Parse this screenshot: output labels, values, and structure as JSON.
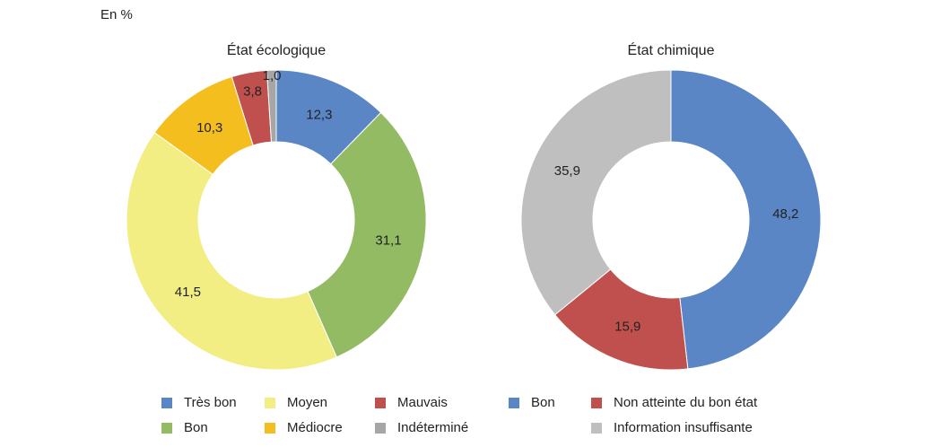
{
  "unit_label": "En %",
  "chart_data": [
    {
      "type": "pie",
      "donut": true,
      "title": "État écologique",
      "categories": [
        "Très bon",
        "Bon",
        "Moyen",
        "Médiocre",
        "Mauvais",
        "Indéterminé"
      ],
      "values": [
        12.3,
        31.1,
        41.5,
        10.3,
        3.8,
        1.0
      ],
      "value_labels": [
        "12,3",
        "31,1",
        "41,5",
        "10,3",
        "3,8",
        "1,0"
      ],
      "colors": [
        "#5a86c5",
        "#93bb64",
        "#f2ee84",
        "#f5be1f",
        "#c0504d",
        "#a6a6a6"
      ],
      "legend": {
        "placement": "bottom",
        "entries": [
          {
            "label": "Très bon",
            "color": "#5a86c5"
          },
          {
            "label": "Bon",
            "color": "#93bb64"
          },
          {
            "label": "Moyen",
            "color": "#f2ee84"
          },
          {
            "label": "Médiocre",
            "color": "#f5be1f"
          },
          {
            "label": "Mauvais",
            "color": "#c0504d"
          },
          {
            "label": "Indéterminé",
            "color": "#a6a6a6"
          }
        ]
      }
    },
    {
      "type": "pie",
      "donut": true,
      "title": "État chimique",
      "categories": [
        "Bon",
        "Non atteinte du bon état",
        "Information insuffisante"
      ],
      "values": [
        48.2,
        15.9,
        35.9
      ],
      "value_labels": [
        "48,2",
        "15,9",
        "35,9"
      ],
      "colors": [
        "#5a86c5",
        "#c0504d",
        "#bfbfbf"
      ],
      "legend": {
        "placement": "bottom",
        "entries": [
          {
            "label": "Bon",
            "color": "#5a86c5"
          },
          {
            "label": "Non atteinte du bon état",
            "color": "#c0504d"
          },
          {
            "label": "Information insuffisante",
            "color": "#bfbfbf"
          }
        ]
      }
    }
  ]
}
